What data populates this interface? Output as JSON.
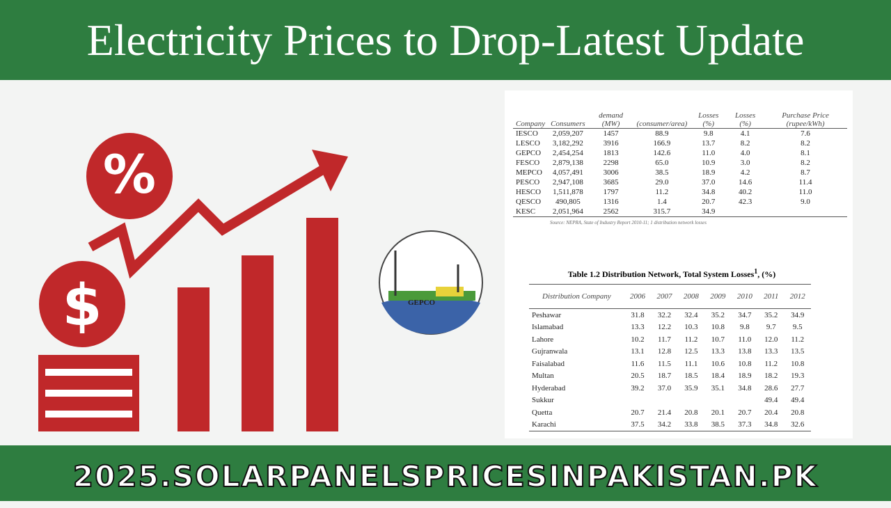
{
  "header": {
    "title": "Electricity Prices to Drop-Latest Update"
  },
  "logo": {
    "label": "GEPCO"
  },
  "table1": {
    "columns": [
      "Company",
      "Consumers",
      "demand (MW)",
      "(consumer/area)",
      "Losses (%)",
      "Losses (%)",
      "Purchase Price (rupee/kWh)"
    ],
    "rows": [
      [
        "IESCO",
        "2,059,207",
        "1457",
        "88.9",
        "9.8",
        "4.1",
        "7.6"
      ],
      [
        "LESCO",
        "3,182,292",
        "3916",
        "166.9",
        "13.7",
        "8.2",
        "8.2"
      ],
      [
        "GEPCO",
        "2,454,254",
        "1813",
        "142.6",
        "11.0",
        "4.0",
        "8.1"
      ],
      [
        "FESCO",
        "2,879,138",
        "2298",
        "65.0",
        "10.9",
        "3.0",
        "8.2"
      ],
      [
        "MEPCO",
        "4,057,491",
        "3006",
        "38.5",
        "18.9",
        "4.2",
        "8.7"
      ],
      [
        "PESCO",
        "2,947,108",
        "3685",
        "29.0",
        "37.0",
        "14.6",
        "11.4"
      ],
      [
        "HESCO",
        "1,511,878",
        "1797",
        "11.2",
        "34.8",
        "40.2",
        "11.0"
      ],
      [
        "QESCO",
        "490,805",
        "1316",
        "1.4",
        "20.7",
        "42.3",
        "9.0"
      ],
      [
        "KESC",
        "2,051,964",
        "2562",
        "315.7",
        "34.9",
        null,
        null
      ]
    ],
    "source": "Source: NEPRA, State of Industry Report 2010-11; 1 distribution network losses"
  },
  "table2": {
    "title": "Table 1.2 Distribution Network, Total System Losses",
    "title_sup": "1",
    "title_end": ", (%)",
    "columns": [
      "Distribution Company",
      "2006",
      "2007",
      "2008",
      "2009",
      "2010",
      "2011",
      "2012"
    ],
    "rows": [
      [
        "Peshawar",
        "31.8",
        "32.2",
        "32.4",
        "35.2",
        "34.7",
        "35.2",
        "34.9"
      ],
      [
        "Islamabad",
        "13.3",
        "12.2",
        "10.3",
        "10.8",
        "9.8",
        "9.7",
        "9.5"
      ],
      [
        "Lahore",
        "10.2",
        "11.7",
        "11.2",
        "10.7",
        "11.0",
        "12.0",
        "11.2"
      ],
      [
        "Gujranwala",
        "13.1",
        "12.8",
        "12.5",
        "13.3",
        "13.8",
        "13.3",
        "13.5"
      ],
      [
        "Faisalabad",
        "11.6",
        "11.5",
        "11.1",
        "10.6",
        "10.8",
        "11.2",
        "10.8"
      ],
      [
        "Multan",
        "20.5",
        "18.7",
        "18.5",
        "18.4",
        "18.9",
        "18.2",
        "19.3"
      ],
      [
        "Hyderabad",
        "39.2",
        "37.0",
        "35.9",
        "35.1",
        "34.8",
        "28.6",
        "27.7"
      ],
      [
        "Sukkur",
        null,
        null,
        null,
        null,
        null,
        "49.4",
        "49.4"
      ],
      [
        "Quetta",
        "20.7",
        "21.4",
        "20.8",
        "20.1",
        "20.7",
        "20.4",
        "20.8"
      ],
      [
        "Karachi",
        "37.5",
        "34.2",
        "33.8",
        "38.5",
        "37.3",
        "34.8",
        "32.6"
      ]
    ]
  },
  "footer": {
    "url": "2025.SOLARPANELSPRICESINPAKISTAN.PK"
  }
}
